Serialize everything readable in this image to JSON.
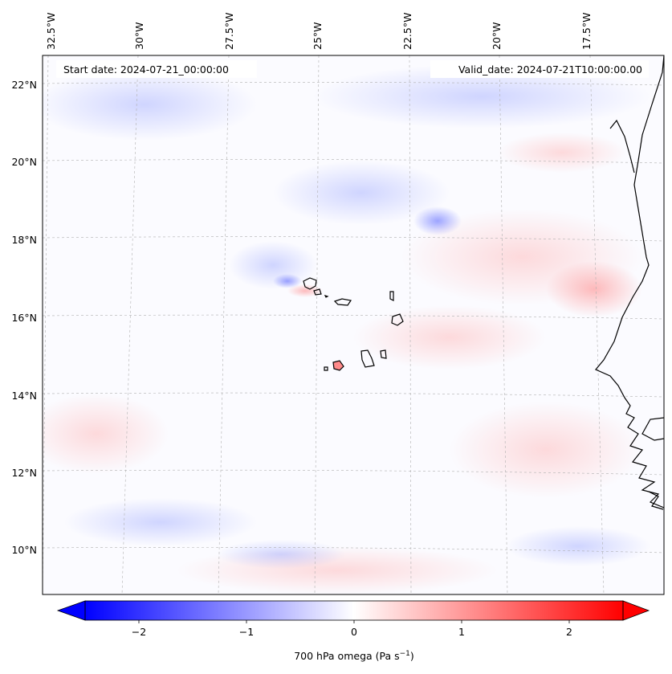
{
  "header": {
    "start_date": "Start date: 2024-07-21_00:00:00",
    "valid_date": "Valid_date: 2024-07-21T10:00:00.00"
  },
  "lon_labels": [
    "32.5°W",
    "30°W",
    "27.5°W",
    "25°W",
    "22.5°W",
    "20°W",
    "17.5°W"
  ],
  "lat_labels": [
    "22°N",
    "20°N",
    "18°N",
    "16°N",
    "14°N",
    "12°N",
    "10°N"
  ],
  "colorbar": {
    "label": "700 hPa omega (Pa s",
    "label_sup": "−1",
    "label_tail": ")",
    "ticks": [
      "−2",
      "−1",
      "0",
      "1",
      "2"
    ],
    "tick_values": [
      -2,
      -1,
      0,
      1,
      2
    ],
    "vmin": -2.5,
    "vmax": 2.5,
    "colors": {
      "negative": "#0000ff",
      "zero": "#ffffff",
      "positive": "#ff0000"
    }
  },
  "colors": {
    "coastline": "#000000",
    "gridline": "#b0b0b0",
    "frame": "#000000"
  }
}
